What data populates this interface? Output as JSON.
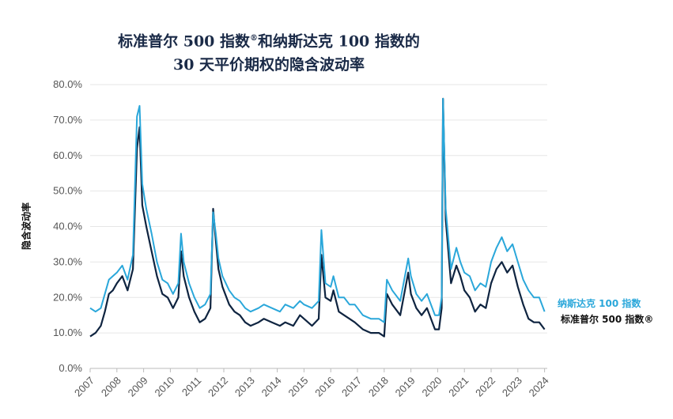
{
  "chart_data": {
    "type": "line",
    "title_line1": "标准普尔 500 指数",
    "title_reg": "®",
    "title_line1_rest": "和纳斯达克 100 指数的",
    "title_line2": "30 天平价期权的隐含波动率",
    "ylabel": "隐含波动率",
    "ylim": [
      0,
      80
    ],
    "y_ticks": [
      "0.0%",
      "10.0%",
      "20.0%",
      "30.0%",
      "40.0%",
      "50.0%",
      "60.0%",
      "70.0%",
      "80.0%"
    ],
    "x_ticks": [
      "2007",
      "2008",
      "2009",
      "2010",
      "2011",
      "2012",
      "2013",
      "2014",
      "2015",
      "2016",
      "2017",
      "2018",
      "2019",
      "2020",
      "2021",
      "2022",
      "2023",
      "2024"
    ],
    "xlim": [
      2007,
      2024.1
    ],
    "grid": true,
    "legend_placement": "right",
    "series": [
      {
        "name": "纳斯达克 100 指数",
        "color": "#2aa7da",
        "x": [
          2007.0,
          2007.2,
          2007.4,
          2007.55,
          2007.7,
          2007.85,
          2008.0,
          2008.2,
          2008.4,
          2008.6,
          2008.75,
          2008.85,
          2008.95,
          2009.1,
          2009.3,
          2009.5,
          2009.7,
          2009.9,
          2010.1,
          2010.3,
          2010.4,
          2010.5,
          2010.7,
          2010.9,
          2011.1,
          2011.3,
          2011.5,
          2011.6,
          2011.7,
          2011.8,
          2011.95,
          2012.2,
          2012.4,
          2012.6,
          2012.8,
          2013.0,
          2013.3,
          2013.5,
          2013.8,
          2014.1,
          2014.3,
          2014.6,
          2014.85,
          2015.0,
          2015.3,
          2015.55,
          2015.65,
          2015.8,
          2016.0,
          2016.1,
          2016.3,
          2016.5,
          2016.7,
          2016.9,
          2017.2,
          2017.5,
          2017.8,
          2018.0,
          2018.1,
          2018.3,
          2018.6,
          2018.9,
          2019.0,
          2019.2,
          2019.4,
          2019.6,
          2019.9,
          2020.05,
          2020.15,
          2020.2,
          2020.3,
          2020.5,
          2020.7,
          2020.85,
          2021.0,
          2021.2,
          2021.4,
          2021.6,
          2021.8,
          2022.0,
          2022.2,
          2022.4,
          2022.6,
          2022.8,
          2023.0,
          2023.2,
          2023.4,
          2023.6,
          2023.8,
          2024.0
        ],
        "values": [
          17,
          16,
          17,
          21,
          25,
          26,
          27,
          29,
          25,
          32,
          71,
          74,
          52,
          45,
          38,
          30,
          25,
          24,
          21,
          24,
          38,
          30,
          24,
          20,
          17,
          18,
          21,
          44,
          38,
          31,
          26,
          22,
          20,
          19,
          17,
          16,
          17,
          18,
          17,
          16,
          18,
          17,
          19,
          18,
          17,
          19,
          39,
          24,
          23,
          26,
          20,
          20,
          18,
          18,
          15,
          14,
          14,
          13,
          25,
          22,
          19,
          31,
          26,
          21,
          19,
          21,
          15,
          15,
          20,
          76,
          45,
          28,
          34,
          30,
          27,
          26,
          22,
          24,
          23,
          30,
          34,
          37,
          33,
          35,
          30,
          25,
          22,
          20,
          20,
          16
        ],
        "note": ""
      },
      {
        "name": "标准普尔 500 指数®",
        "color": "#0f2440",
        "x": [
          2007.0,
          2007.2,
          2007.4,
          2007.55,
          2007.7,
          2007.85,
          2008.0,
          2008.2,
          2008.4,
          2008.6,
          2008.75,
          2008.85,
          2008.95,
          2009.1,
          2009.3,
          2009.5,
          2009.7,
          2009.9,
          2010.1,
          2010.3,
          2010.4,
          2010.5,
          2010.7,
          2010.9,
          2011.1,
          2011.3,
          2011.5,
          2011.6,
          2011.7,
          2011.8,
          2011.95,
          2012.2,
          2012.4,
          2012.6,
          2012.8,
          2013.0,
          2013.3,
          2013.5,
          2013.8,
          2014.1,
          2014.3,
          2014.6,
          2014.85,
          2015.0,
          2015.3,
          2015.55,
          2015.65,
          2015.8,
          2016.0,
          2016.1,
          2016.3,
          2016.5,
          2016.7,
          2016.9,
          2017.2,
          2017.5,
          2017.8,
          2018.0,
          2018.1,
          2018.3,
          2018.6,
          2018.9,
          2019.0,
          2019.2,
          2019.4,
          2019.6,
          2019.9,
          2020.05,
          2020.15,
          2020.2,
          2020.3,
          2020.5,
          2020.7,
          2020.85,
          2021.0,
          2021.2,
          2021.4,
          2021.6,
          2021.8,
          2022.0,
          2022.2,
          2022.4,
          2022.6,
          2022.8,
          2023.0,
          2023.2,
          2023.4,
          2023.6,
          2023.8,
          2024.0
        ],
        "values": [
          9,
          10,
          12,
          16,
          21,
          22,
          24,
          26,
          22,
          28,
          62,
          68,
          46,
          40,
          33,
          26,
          21,
          20,
          17,
          20,
          33,
          26,
          20,
          16,
          13,
          14,
          17,
          45,
          36,
          28,
          23,
          18,
          16,
          15,
          13,
          12,
          13,
          14,
          13,
          12,
          13,
          12,
          15,
          14,
          12,
          14,
          32,
          20,
          19,
          22,
          16,
          15,
          14,
          13,
          11,
          10,
          10,
          9,
          21,
          18,
          15,
          27,
          21,
          17,
          15,
          17,
          11,
          11,
          17,
          76,
          42,
          24,
          29,
          26,
          22,
          20,
          16,
          18,
          17,
          24,
          28,
          30,
          27,
          29,
          23,
          18,
          14,
          13,
          13,
          11
        ],
        "note": ""
      }
    ]
  }
}
